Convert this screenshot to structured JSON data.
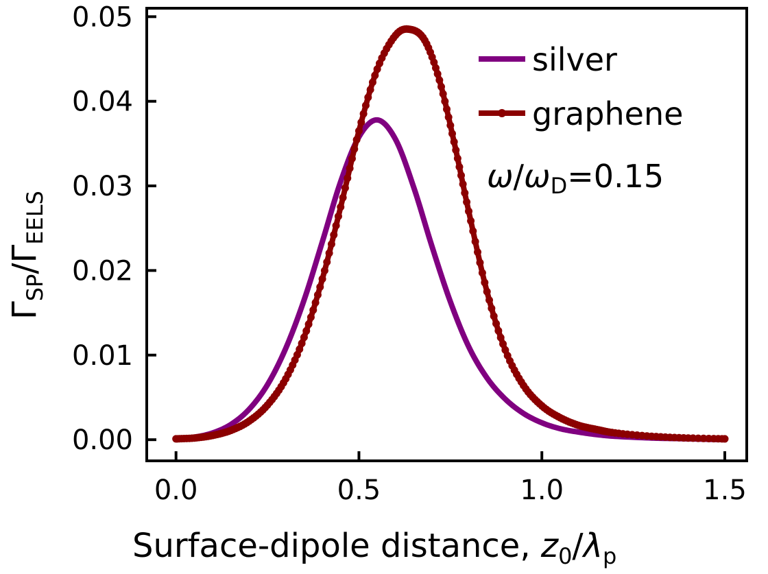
{
  "chart_data": {
    "type": "line",
    "xlabel": {
      "main": "Surface-dipole distance, ",
      "var": "z",
      "var_sub": "0",
      "sep": "/",
      "var2": "λ",
      "var2_sub": "p"
    },
    "ylabel": {
      "num": "Γ",
      "num_sub": "SP",
      "sep": "/",
      "den": "Γ",
      "den_sub": "EELS"
    },
    "xlim": [
      -0.08,
      1.56
    ],
    "ylim": [
      -0.0025,
      0.051
    ],
    "xticks": [
      0.0,
      0.5,
      1.0,
      1.5
    ],
    "xtick_labels": [
      "0.0",
      "0.5",
      "1.0",
      "1.5"
    ],
    "yticks": [
      0.0,
      0.01,
      0.02,
      0.03,
      0.04,
      0.05
    ],
    "ytick_labels": [
      "0.00",
      "0.01",
      "0.02",
      "0.03",
      "0.04",
      "0.05"
    ],
    "legend_position": "top-right",
    "annotation": {
      "sym": "ω",
      "sep": "/",
      "sym2": "ω",
      "sym2_sub": "D",
      "rest": "=0.15"
    },
    "series": [
      {
        "name": "silver",
        "color": "#800080",
        "marker": false,
        "x": [
          0.0,
          0.05,
          0.1,
          0.15,
          0.2,
          0.25,
          0.3,
          0.35,
          0.4,
          0.45,
          0.5,
          0.55,
          0.6,
          0.65,
          0.7,
          0.75,
          0.8,
          0.85,
          0.9,
          0.95,
          1.0,
          1.05,
          1.1,
          1.15,
          1.2,
          1.3,
          1.4,
          1.5
        ],
        "y": [
          0.0001,
          0.0003,
          0.0008,
          0.0018,
          0.0036,
          0.0065,
          0.0108,
          0.0165,
          0.0234,
          0.0305,
          0.0358,
          0.0378,
          0.0355,
          0.0298,
          0.0228,
          0.0163,
          0.011,
          0.0073,
          0.0048,
          0.0031,
          0.002,
          0.0013,
          0.0009,
          0.0006,
          0.0004,
          0.0002,
          0.0001,
          0.0
        ]
      },
      {
        "name": "graphene",
        "color": "#8b0000",
        "marker": true,
        "x": [
          0.0,
          0.05,
          0.1,
          0.15,
          0.2,
          0.25,
          0.3,
          0.35,
          0.4,
          0.45,
          0.5,
          0.55,
          0.6,
          0.64,
          0.68,
          0.72,
          0.76,
          0.8,
          0.85,
          0.9,
          0.95,
          1.0,
          1.05,
          1.1,
          1.15,
          1.2,
          1.3,
          1.4,
          1.5
        ],
        "y": [
          0.0001,
          0.0002,
          0.0005,
          0.0011,
          0.0022,
          0.0041,
          0.0072,
          0.0121,
          0.019,
          0.0275,
          0.0365,
          0.0438,
          0.0478,
          0.0485,
          0.0472,
          0.0425,
          0.0352,
          0.027,
          0.0175,
          0.0106,
          0.0064,
          0.004,
          0.0026,
          0.0017,
          0.0012,
          0.0008,
          0.0004,
          0.0002,
          0.0001
        ]
      }
    ]
  }
}
